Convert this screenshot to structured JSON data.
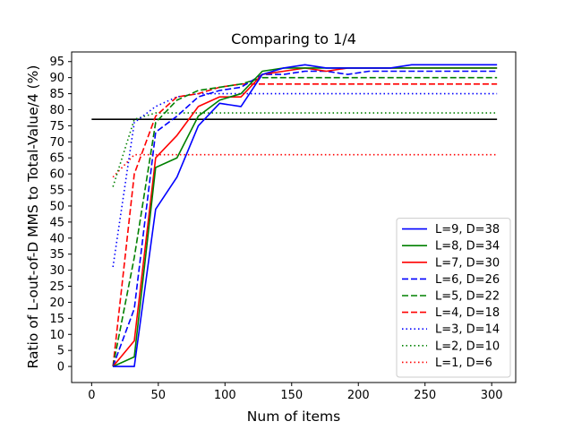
{
  "chart_data": {
    "type": "line",
    "title": "Comparing to 1/4",
    "xlabel": "Num of items",
    "ylabel": "Ratio of L-out-of-D MMS to Total-Value/4 (%)",
    "xlim": [
      -15,
      318
    ],
    "ylim": [
      -5,
      98
    ],
    "xticks": [
      0,
      50,
      100,
      150,
      200,
      250,
      300
    ],
    "yticks": [
      0,
      5,
      10,
      15,
      20,
      25,
      30,
      35,
      40,
      45,
      50,
      55,
      60,
      65,
      70,
      75,
      80,
      85,
      90,
      95
    ],
    "legend_position": "lower right",
    "reference_line": {
      "x": [
        0,
        304
      ],
      "y": [
        77,
        77
      ],
      "color": "#000000",
      "style": "solid"
    },
    "series": [
      {
        "name": "L=9, D=38",
        "color": "#0000ff",
        "style": "solid",
        "x": [
          16,
          32,
          48,
          64,
          80,
          96,
          112,
          128,
          144,
          160,
          176,
          192,
          208,
          224,
          240,
          256,
          272,
          288,
          304
        ],
        "y": [
          0,
          0,
          49,
          59,
          75,
          82,
          81,
          91,
          93,
          94,
          93,
          93,
          93,
          93,
          94,
          94,
          94,
          94,
          94
        ]
      },
      {
        "name": "L=8, D=34",
        "color": "#008000",
        "style": "solid",
        "x": [
          16,
          32,
          48,
          64,
          80,
          96,
          112,
          128,
          144,
          160,
          176,
          192,
          208,
          224,
          240,
          256,
          272,
          288,
          304
        ],
        "y": [
          0,
          3,
          62,
          65,
          78,
          83,
          85,
          92,
          93,
          93,
          93,
          93,
          93,
          93,
          93,
          93,
          93,
          93,
          93
        ]
      },
      {
        "name": "L=7, D=30",
        "color": "#ff0000",
        "style": "solid",
        "x": [
          16,
          32,
          48,
          64,
          80,
          96,
          112,
          128,
          144,
          160,
          176,
          192,
          208,
          224,
          240,
          256,
          272,
          288,
          304
        ],
        "y": [
          0,
          8,
          65,
          72,
          81,
          84,
          84,
          91,
          92,
          93,
          92,
          93,
          93,
          93,
          93,
          93,
          93,
          93,
          93
        ]
      },
      {
        "name": "L=6, D=26",
        "color": "#0000ff",
        "style": "dashed",
        "x": [
          16,
          32,
          48,
          64,
          80,
          96,
          112,
          128,
          144,
          160,
          176,
          192,
          208,
          224,
          240,
          256,
          272,
          288,
          304
        ],
        "y": [
          0,
          18,
          73,
          78,
          84,
          86,
          87,
          91,
          91,
          92,
          92,
          91,
          92,
          92,
          92,
          92,
          92,
          92,
          92
        ]
      },
      {
        "name": "L=5, D=22",
        "color": "#008000",
        "style": "dashed",
        "x": [
          16,
          32,
          48,
          64,
          80,
          96,
          112,
          128,
          144,
          160,
          176,
          192,
          208,
          224,
          240,
          256,
          272,
          288,
          304
        ],
        "y": [
          0,
          34,
          76,
          83,
          86,
          87,
          88,
          90,
          90,
          90,
          90,
          90,
          90,
          90,
          90,
          90,
          90,
          90,
          90
        ]
      },
      {
        "name": "L=4, D=18",
        "color": "#ff0000",
        "style": "dashed",
        "x": [
          16,
          32,
          48,
          64,
          80,
          96,
          112,
          128,
          144,
          160,
          176,
          192,
          208,
          224,
          240,
          256,
          272,
          288,
          304
        ],
        "y": [
          0,
          60,
          78,
          84,
          85,
          87,
          88,
          88,
          88,
          88,
          88,
          88,
          88,
          88,
          88,
          88,
          88,
          88,
          88
        ]
      },
      {
        "name": "L=3, D=14",
        "color": "#0000ff",
        "style": "dotted",
        "x": [
          16,
          32,
          48,
          64,
          80,
          96,
          112,
          128,
          144,
          160,
          176,
          192,
          208,
          224,
          240,
          256,
          272,
          288,
          304
        ],
        "y": [
          31,
          76,
          81,
          84,
          85,
          85,
          85,
          85,
          85,
          85,
          85,
          85,
          85,
          85,
          85,
          85,
          85,
          85,
          85
        ]
      },
      {
        "name": "L=2, D=10",
        "color": "#008000",
        "style": "dotted",
        "x": [
          16,
          32,
          48,
          64,
          80,
          96,
          112,
          128,
          144,
          160,
          176,
          192,
          208,
          224,
          240,
          256,
          272,
          288,
          304
        ],
        "y": [
          56,
          77,
          79,
          79,
          79,
          79,
          79,
          79,
          79,
          79,
          79,
          79,
          79,
          79,
          79,
          79,
          79,
          79,
          79
        ]
      },
      {
        "name": "L=1, D=6",
        "color": "#ff0000",
        "style": "dotted",
        "x": [
          16,
          32,
          48,
          64,
          80,
          96,
          112,
          128,
          144,
          160,
          176,
          192,
          208,
          224,
          240,
          256,
          272,
          288,
          304
        ],
        "y": [
          59,
          66,
          66,
          66,
          66,
          66,
          66,
          66,
          66,
          66,
          66,
          66,
          66,
          66,
          66,
          66,
          66,
          66,
          66
        ]
      }
    ]
  }
}
